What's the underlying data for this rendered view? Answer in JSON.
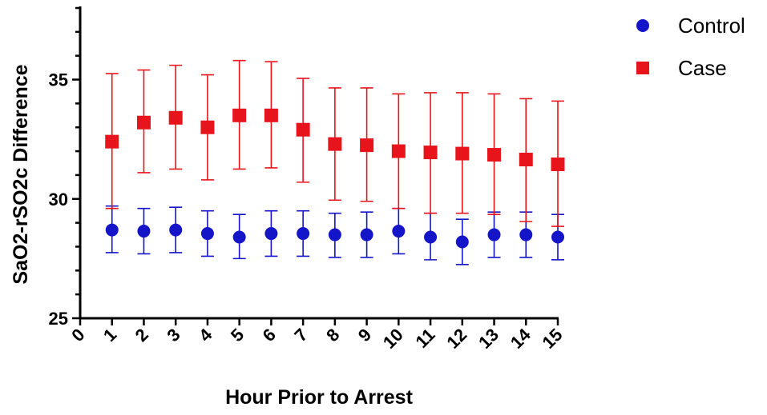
{
  "chart_data": {
    "type": "scatter",
    "xlabel": "Hour Prior to Arrest",
    "ylabel": "SaO2-rSO2c Difference",
    "xlim": [
      0,
      15
    ],
    "ylim": [
      25,
      38
    ],
    "x_ticks": [
      "0",
      "1",
      "2",
      "3",
      "4",
      "5",
      "6",
      "7",
      "8",
      "9",
      "10",
      "11",
      "12",
      "13",
      "14",
      "15"
    ],
    "y_ticks": [
      "25",
      "30",
      "35"
    ],
    "legend_position": "top-right",
    "grid": false,
    "series": [
      {
        "name": "Control",
        "marker": "circle",
        "color": "#1414c8",
        "x": [
          1,
          2,
          3,
          4,
          5,
          6,
          7,
          8,
          9,
          10,
          11,
          12,
          13,
          14,
          15
        ],
        "y": [
          28.7,
          28.65,
          28.7,
          28.55,
          28.4,
          28.55,
          28.55,
          28.5,
          28.5,
          28.65,
          28.4,
          28.2,
          28.5,
          28.5,
          28.4
        ],
        "err_low": [
          27.75,
          27.7,
          27.75,
          27.6,
          27.5,
          27.6,
          27.6,
          27.55,
          27.55,
          27.7,
          27.45,
          27.25,
          27.55,
          27.55,
          27.45
        ],
        "err_high": [
          29.7,
          29.6,
          29.65,
          29.5,
          29.35,
          29.5,
          29.5,
          29.4,
          29.45,
          29.6,
          29.4,
          29.15,
          29.45,
          29.45,
          29.35
        ]
      },
      {
        "name": "Case",
        "marker": "square",
        "color": "#e8141c",
        "x": [
          1,
          2,
          3,
          4,
          5,
          6,
          7,
          8,
          9,
          10,
          11,
          12,
          13,
          14,
          15
        ],
        "y": [
          32.4,
          33.2,
          33.4,
          33.0,
          33.5,
          33.5,
          32.9,
          32.3,
          32.25,
          32.0,
          31.95,
          31.9,
          31.85,
          31.65,
          31.45
        ],
        "err_low": [
          29.6,
          31.1,
          31.25,
          30.8,
          31.25,
          31.3,
          30.7,
          29.95,
          29.9,
          29.6,
          29.4,
          29.4,
          29.35,
          29.05,
          28.85
        ],
        "err_high": [
          35.25,
          35.4,
          35.6,
          35.2,
          35.8,
          35.75,
          35.05,
          34.65,
          34.65,
          34.4,
          34.45,
          34.45,
          34.4,
          34.2,
          34.1
        ]
      }
    ]
  }
}
